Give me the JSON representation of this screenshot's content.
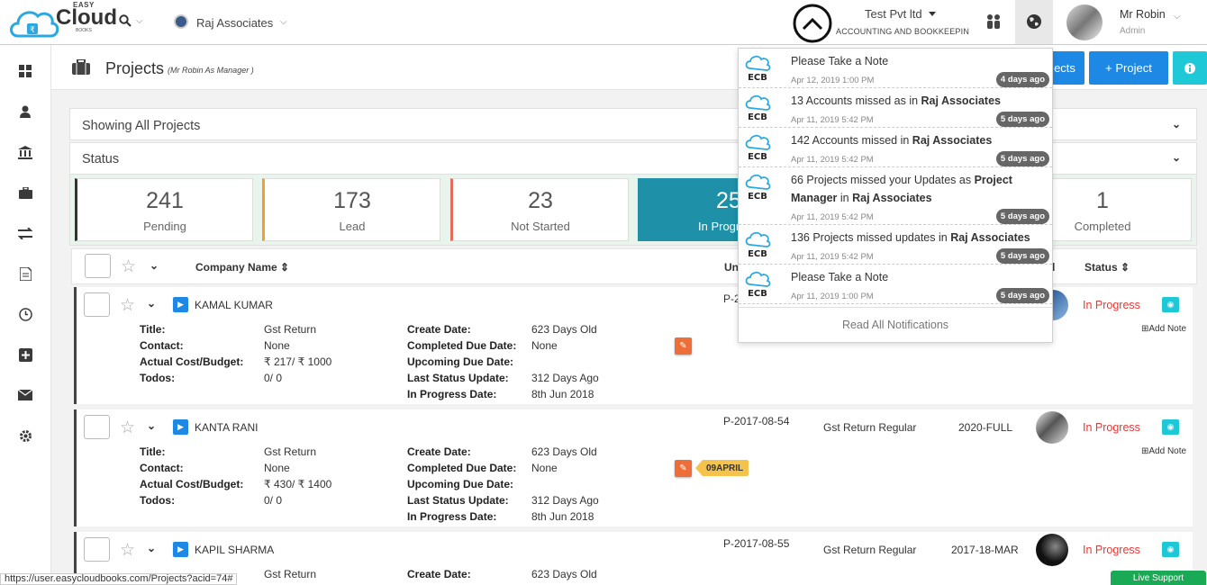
{
  "header": {
    "logo": {
      "easy": "EASY",
      "cloud": "Cloud",
      "books": "BOOKS"
    },
    "company_select": "Raj Associates",
    "firm_name": "Test Pvt ltd",
    "firm_sub": "ACCOUNTING AND BOOKKEEPIN",
    "user_name": "Mr Robin",
    "user_role": "Admin"
  },
  "sidebar": {
    "items": [
      "dashboard-icon",
      "user-icon",
      "bank-icon",
      "briefcase-icon",
      "transfer-icon",
      "document-icon",
      "clock-icon",
      "plus-square-icon",
      "mail-icon",
      "gear-icon"
    ]
  },
  "page": {
    "title": "Projects",
    "subtitle": "(Mr Robin As Manager )",
    "buttons": {
      "projects_partial": "ects",
      "add_project": "+ Project"
    }
  },
  "filters": {
    "showing": "Showing All Projects",
    "status": "Status"
  },
  "stats": [
    {
      "num": "241",
      "label": "Pending",
      "color": "#333333"
    },
    {
      "num": "173",
      "label": "Lead",
      "color": "#f0a030"
    },
    {
      "num": "23",
      "label": "Not Started",
      "color": "#e56b5a"
    },
    {
      "num": "25",
      "label": "In Progr",
      "color": "#1e90a8"
    },
    {
      "num": "1",
      "label": "Completed",
      "color": "#dddddd"
    }
  ],
  "table": {
    "headers": {
      "company": "Company Name",
      "unit": "Uni",
      "status_col": "l",
      "status": "Status"
    },
    "field_labels": {
      "title": "Title:",
      "contact": "Contact:",
      "cost": "Actual Cost/Budget:",
      "todos": "Todos:",
      "create": "Create Date:",
      "completed_due": "Completed Due Date:",
      "upcoming_due": "Upcoming Due Date:",
      "last_status": "Last Status Update:",
      "in_progress": "In Progress Date:"
    },
    "add_note": "Add Note",
    "rows": [
      {
        "name": "KAMAL KUMAR",
        "title": "Gst Return",
        "contact": "None",
        "cost": "₹ 217/ ₹ 1000",
        "todos": "0/ 0",
        "create": "623 Days Old",
        "completed_due": "None",
        "upcoming_due": "",
        "last_status": "312 Days Ago",
        "in_progress": "8th Jun 2018",
        "code": "P-2",
        "service": "",
        "period": "",
        "status": "In Progress",
        "tag": ""
      },
      {
        "name": "KANTA RANI",
        "title": "Gst Return",
        "contact": "None",
        "cost": "₹ 430/ ₹ 1400",
        "todos": "0/ 0",
        "create": "623 Days Old",
        "completed_due": "None",
        "upcoming_due": "",
        "last_status": "312 Days Ago",
        "in_progress": "8th Jun 2018",
        "code": "P-2017-08-54",
        "service": "Gst Return Regular",
        "period": "2020-FULL",
        "status": "In Progress",
        "tag": "09APRIL"
      },
      {
        "name": "KAPIL SHARMA",
        "title": "Gst Return",
        "contact": "",
        "cost": "",
        "todos": "",
        "create": "623 Days Old",
        "completed_due": "",
        "upcoming_due": "",
        "last_status": "",
        "in_progress": "",
        "code": "P-2017-08-55",
        "service": "Gst Return Regular",
        "period": "2017-18-MAR",
        "status": "In Progress",
        "tag": ""
      }
    ]
  },
  "notifications": {
    "items": [
      {
        "text_a": "Please Take a Note",
        "bold_a": "",
        "text_b": "",
        "bold_b": "",
        "date": "Apr 12, 2019 1:00 PM",
        "badge": "4 days ago"
      },
      {
        "text_a": "13 Accounts missed as in ",
        "bold_a": "Raj Associates",
        "text_b": "",
        "bold_b": "",
        "date": "Apr 11, 2019 5:42 PM",
        "badge": "5 days ago"
      },
      {
        "text_a": "142 Accounts missed in ",
        "bold_a": "Raj Associates",
        "text_b": "",
        "bold_b": "",
        "date": "Apr 11, 2019 5:42 PM",
        "badge": "5 days ago"
      },
      {
        "text_a": "66 Projects missed your Updates as ",
        "bold_a": "Project Manager",
        "text_b": " in ",
        "bold_b": "Raj Associates",
        "date": "Apr 11, 2019 5:42 PM",
        "badge": "5 days ago"
      },
      {
        "text_a": "136 Projects missed updates in ",
        "bold_a": "Raj Associates",
        "text_b": "",
        "bold_b": "",
        "date": "Apr 11, 2019 5:42 PM",
        "badge": "5 days ago"
      },
      {
        "text_a": "Please Take a Note",
        "bold_a": "",
        "text_b": "",
        "bold_b": "",
        "date": "Apr 11, 2019 1:00 PM",
        "badge": "5 days ago"
      }
    ],
    "logo_text": "ECB",
    "read_all": "Read All Notifications"
  },
  "status_bar": {
    "url": "https://user.easycloudbooks.com/Projects?acid=74#",
    "live_support": "Live Support"
  },
  "colors": {
    "accent": "#1e88e5",
    "teal": "#1e90a8",
    "red_status": "#e53935",
    "cyan": "#1fc8d6"
  }
}
